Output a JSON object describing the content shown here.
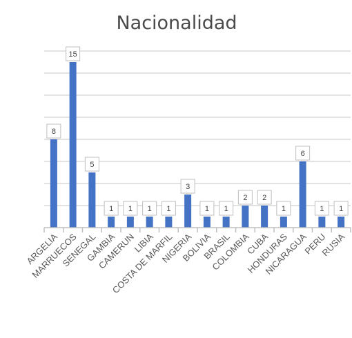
{
  "chart_data": {
    "type": "bar",
    "title": "Nacionalidad",
    "xlabel": "",
    "ylabel": "",
    "ylim": [
      0,
      16
    ],
    "grid": true,
    "legend": "none",
    "bar_color": "#4472c4",
    "categories": [
      "ARGELIA",
      "MARRUECOS",
      "SENEGAL",
      "GAMBIA",
      "CAMERUN",
      "LIBIA",
      "COSTA DE MARFIL",
      "NIGERIA",
      "BOLIVIA",
      "BRASIL",
      "COLOMBIA",
      "CUBA",
      "HONDURAS",
      "NICARAGUA",
      "PERU",
      "RUSIA"
    ],
    "values": [
      8,
      15,
      5,
      1,
      1,
      1,
      1,
      3,
      1,
      1,
      2,
      2,
      1,
      6,
      1,
      1
    ]
  }
}
